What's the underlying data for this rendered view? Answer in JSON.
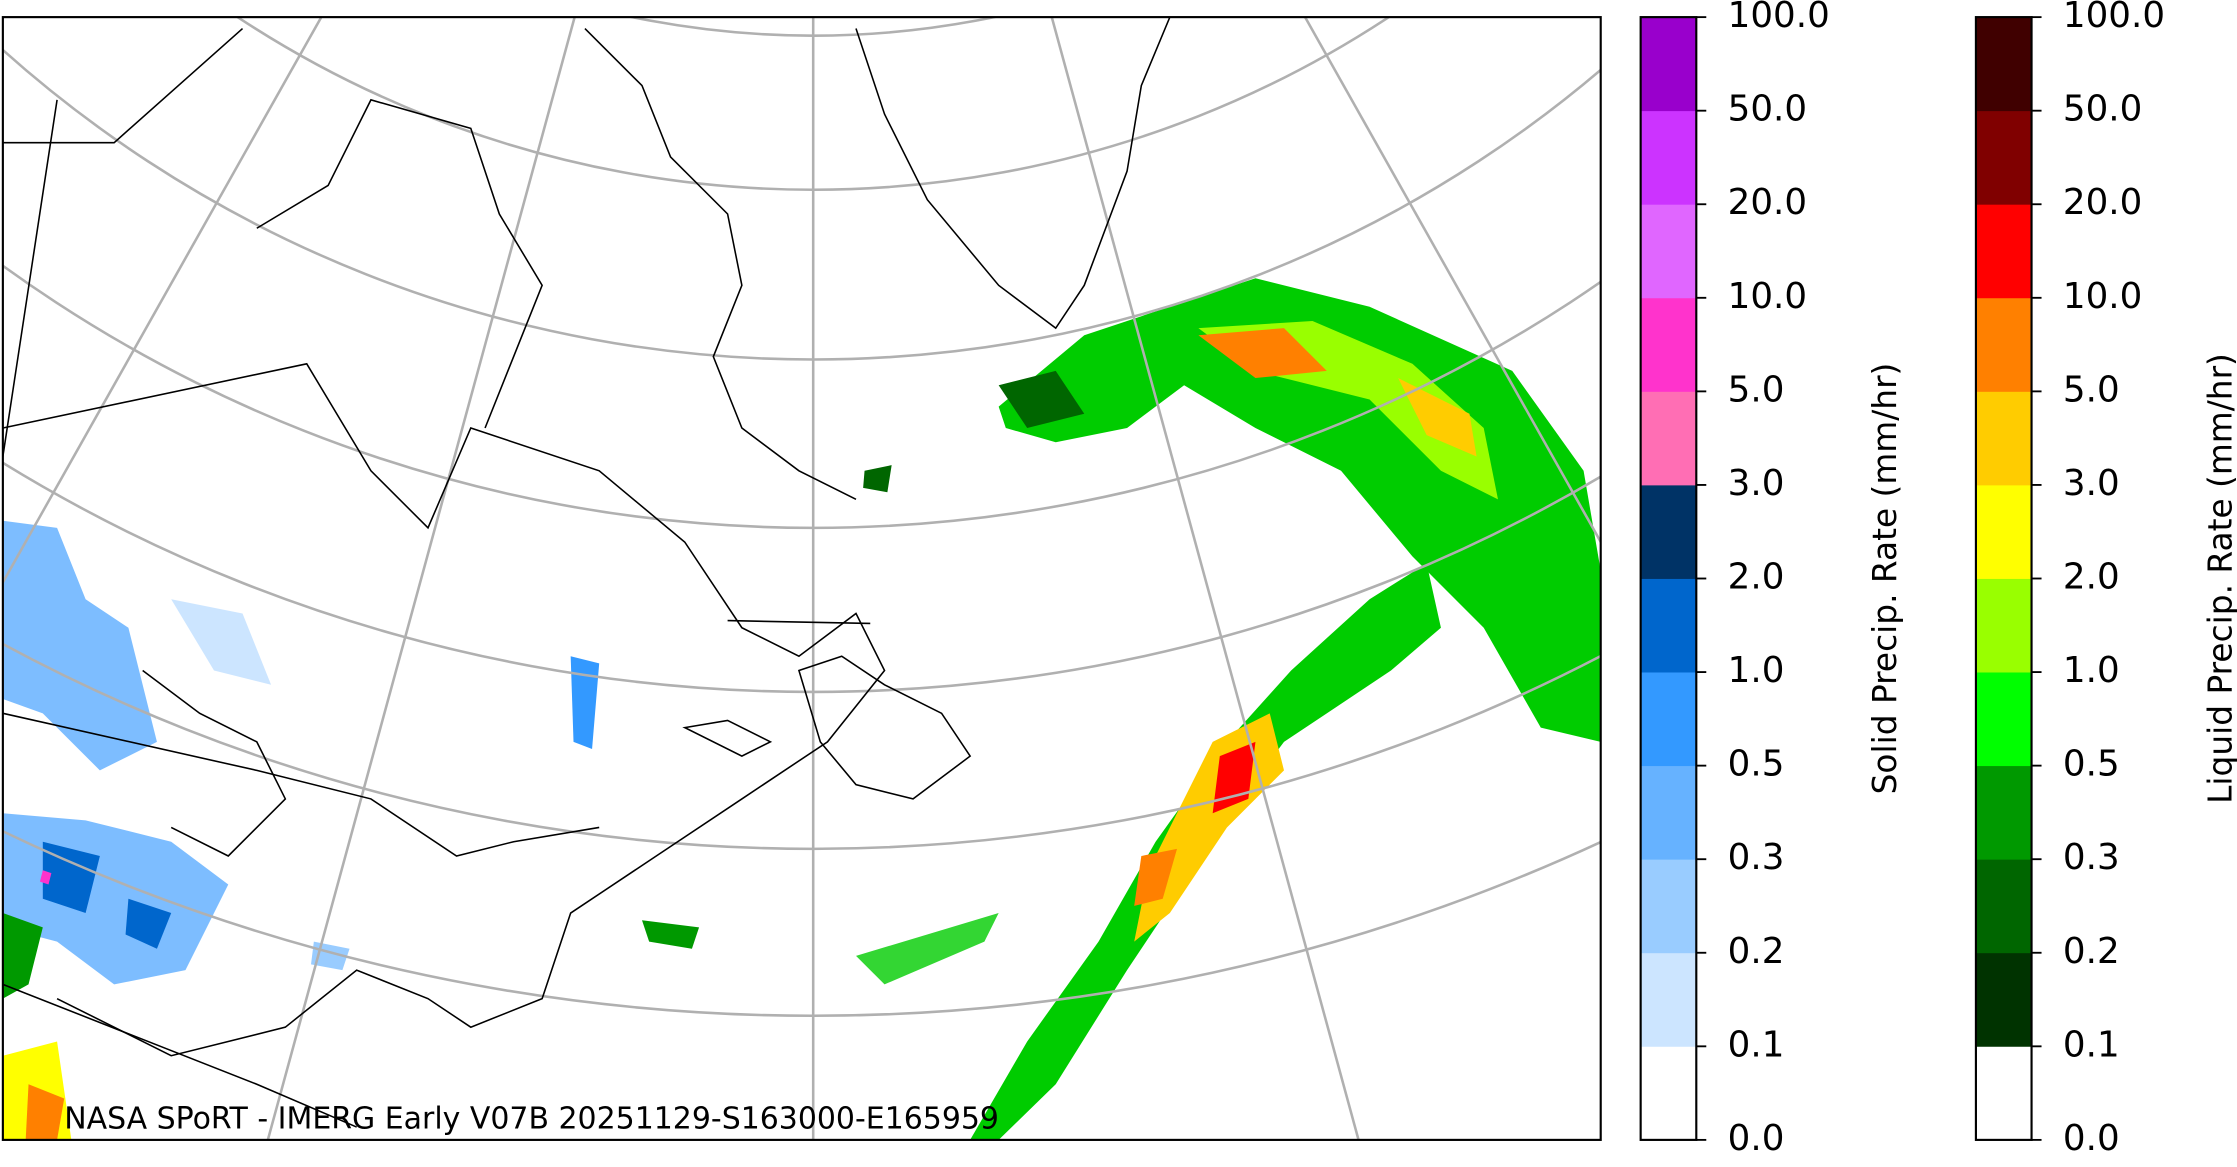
{
  "map": {
    "caption": "NASA SPoRT - IMERG Early V07B 20251129-S163000-E165959"
  },
  "colorbars": [
    {
      "label": "Solid Precip. Rate (mm/hr)",
      "ticks": [
        "0.0",
        "0.1",
        "0.2",
        "0.3",
        "0.5",
        "1.0",
        "2.0",
        "3.0",
        "5.0",
        "10.0",
        "20.0",
        "50.0",
        "100.0"
      ],
      "colors": [
        "#ffffff",
        "#cce5ff",
        "#99ccff",
        "#66b2ff",
        "#3399ff",
        "#0066cc",
        "#003366",
        "#ff6eb4",
        "#ff33cc",
        "#e066ff",
        "#cc33ff",
        "#9900cc"
      ]
    },
    {
      "label": "Liquid Precip. Rate (mm/hr)",
      "ticks": [
        "0.0",
        "0.1",
        "0.2",
        "0.3",
        "0.5",
        "1.0",
        "2.0",
        "3.0",
        "5.0",
        "10.0",
        "20.0",
        "50.0",
        "100.0"
      ],
      "colors": [
        "#ffffff",
        "#003300",
        "#006600",
        "#009900",
        "#00ff00",
        "#99ff00",
        "#ffff00",
        "#ffcc00",
        "#ff8000",
        "#ff0000",
        "#800000",
        "#400000"
      ]
    }
  ]
}
